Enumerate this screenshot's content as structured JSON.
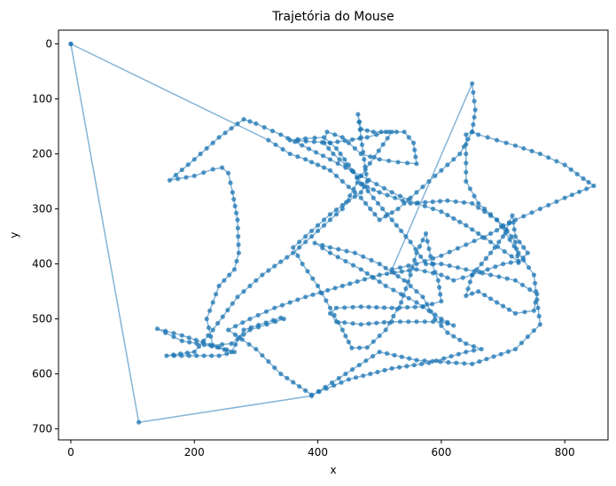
{
  "chart_data": {
    "type": "line",
    "title": "Trajetória do Mouse",
    "xlabel": "x",
    "ylabel": "y",
    "xlim": [
      -20,
      870
    ],
    "ylim": [
      -25,
      720
    ],
    "y_inverted": true,
    "x_ticks": [
      0,
      200,
      400,
      600,
      800
    ],
    "y_ticks": [
      0,
      100,
      200,
      300,
      400,
      500,
      600,
      700
    ],
    "grid": false,
    "color": "#1f77b4",
    "series": [
      {
        "points": [
          [
            0,
            0
          ],
          [
            110,
            688
          ],
          [
            390,
            640
          ],
          [
            500,
            560
          ],
          [
            560,
            575
          ],
          [
            650,
            582
          ],
          [
            720,
            555
          ],
          [
            760,
            510
          ],
          [
            750,
            420
          ],
          [
            725,
            380
          ],
          [
            690,
            320
          ],
          [
            650,
            290
          ],
          [
            610,
            285
          ],
          [
            550,
            290
          ],
          [
            500,
            270
          ],
          [
            470,
            255
          ],
          [
            450,
            220
          ],
          [
            430,
            190
          ],
          [
            410,
            170
          ],
          [
            380,
            172
          ],
          [
            355,
            175
          ],
          [
            420,
            180
          ],
          [
            480,
            170
          ],
          [
            510,
            160
          ],
          [
            520,
            160
          ],
          [
            470,
            240
          ],
          [
            440,
            300
          ],
          [
            400,
            340
          ],
          [
            360,
            380
          ],
          [
            310,
            420
          ],
          [
            270,
            460
          ],
          [
            230,
            520
          ],
          [
            200,
            560
          ],
          [
            155,
            567
          ],
          [
            240,
            567
          ],
          [
            265,
            560
          ],
          [
            240,
            552
          ],
          [
            180,
            540
          ],
          [
            140,
            518
          ],
          [
            180,
            530
          ],
          [
            260,
            560
          ],
          [
            280,
            520
          ],
          [
            340,
            498
          ],
          [
            345,
            500
          ],
          [
            290,
            520
          ],
          [
            260,
            545
          ],
          [
            230,
            548
          ],
          [
            220,
            500
          ],
          [
            240,
            440
          ],
          [
            265,
            410
          ],
          [
            272,
            380
          ],
          [
            270,
            320
          ],
          [
            262,
            270
          ],
          [
            255,
            235
          ],
          [
            245,
            225
          ],
          [
            230,
            228
          ],
          [
            200,
            240
          ],
          [
            160,
            248
          ],
          [
            200,
            210
          ],
          [
            240,
            170
          ],
          [
            280,
            137
          ],
          [
            300,
            145
          ],
          [
            340,
            165
          ],
          [
            420,
            210
          ],
          [
            470,
            240
          ],
          [
            520,
            270
          ],
          [
            560,
            290
          ],
          [
            600,
            305
          ],
          [
            640,
            330
          ],
          [
            680,
            360
          ],
          [
            725,
            395
          ],
          [
            700,
            400
          ],
          [
            650,
            420
          ],
          [
            620,
            430
          ],
          [
            600,
            420
          ],
          [
            560,
            410
          ],
          [
            500,
            420
          ],
          [
            440,
            440
          ],
          [
            380,
            460
          ],
          [
            330,
            480
          ],
          [
            290,
            500
          ],
          [
            255,
            520
          ],
          [
            300,
            555
          ],
          [
            340,
            600
          ],
          [
            390,
            638
          ],
          [
            450,
            610
          ],
          [
            520,
            590
          ],
          [
            580,
            580
          ],
          [
            640,
            560
          ],
          [
            665,
            555
          ],
          [
            640,
            545
          ],
          [
            610,
            525
          ],
          [
            590,
            500
          ],
          [
            570,
            460
          ],
          [
            540,
            430
          ],
          [
            500,
            400
          ],
          [
            460,
            380
          ],
          [
            420,
            370
          ],
          [
            395,
            362
          ],
          [
            420,
            380
          ],
          [
            470,
            410
          ],
          [
            510,
            440
          ],
          [
            560,
            470
          ],
          [
            600,
            500
          ],
          [
            620,
            512
          ],
          [
            600,
            505
          ],
          [
            560,
            505
          ],
          [
            520,
            505
          ],
          [
            470,
            510
          ],
          [
            430,
            505
          ],
          [
            420,
            490
          ],
          [
            430,
            480
          ],
          [
            470,
            478
          ],
          [
            520,
            480
          ],
          [
            570,
            478
          ],
          [
            600,
            468
          ],
          [
            595,
            430
          ],
          [
            585,
            400
          ],
          [
            575,
            345
          ],
          [
            560,
            380
          ],
          [
            550,
            420
          ],
          [
            535,
            470
          ],
          [
            510,
            520
          ],
          [
            480,
            552
          ],
          [
            455,
            553
          ],
          [
            440,
            520
          ],
          [
            420,
            480
          ],
          [
            400,
            440
          ],
          [
            375,
            400
          ],
          [
            360,
            370
          ],
          [
            390,
            340
          ],
          [
            420,
            310
          ],
          [
            450,
            285
          ],
          [
            470,
            270
          ],
          [
            480,
            250
          ],
          [
            475,
            210
          ],
          [
            470,
            170
          ],
          [
            465,
            128
          ],
          [
            470,
            155
          ],
          [
            490,
            160
          ],
          [
            540,
            160
          ],
          [
            555,
            180
          ],
          [
            560,
            218
          ],
          [
            530,
            215
          ],
          [
            500,
            210
          ],
          [
            470,
            200
          ],
          [
            440,
            170
          ],
          [
            415,
            160
          ],
          [
            410,
            180
          ],
          [
            425,
            200
          ],
          [
            455,
            230
          ],
          [
            490,
            280
          ],
          [
            520,
            320
          ],
          [
            550,
            360
          ],
          [
            575,
            400
          ],
          [
            600,
            400
          ],
          [
            640,
            410
          ],
          [
            680,
            420
          ],
          [
            720,
            430
          ],
          [
            755,
            455
          ],
          [
            750,
            485
          ],
          [
            720,
            490
          ],
          [
            690,
            470
          ],
          [
            660,
            450
          ],
          [
            640,
            458
          ],
          [
            650,
            420
          ],
          [
            680,
            380
          ],
          [
            700,
            350
          ],
          [
            715,
            312
          ],
          [
            720,
            350
          ],
          [
            740,
            380
          ],
          [
            725,
            398
          ],
          [
            720,
            360
          ],
          [
            700,
            330
          ],
          [
            680,
            310
          ],
          [
            660,
            290
          ],
          [
            640,
            250
          ],
          [
            640,
            200
          ],
          [
            640,
            165
          ],
          [
            650,
            160
          ],
          [
            660,
            165
          ],
          [
            690,
            175
          ],
          [
            720,
            185
          ],
          [
            760,
            200
          ],
          [
            800,
            220
          ],
          [
            830,
            245
          ],
          [
            847,
            258
          ],
          [
            800,
            280
          ],
          [
            760,
            300
          ],
          [
            720,
            320
          ],
          [
            680,
            345
          ],
          [
            640,
            365
          ],
          [
            600,
            385
          ],
          [
            560,
            400
          ],
          [
            520,
            410
          ],
          [
            650,
            72
          ],
          [
            655,
            120
          ],
          [
            650,
            160
          ],
          [
            630,
            200
          ],
          [
            600,
            230
          ],
          [
            560,
            270
          ],
          [
            530,
            300
          ],
          [
            500,
            320
          ],
          [
            470,
            280
          ],
          [
            440,
            250
          ],
          [
            420,
            230
          ],
          [
            400,
            220
          ],
          [
            380,
            210
          ],
          [
            355,
            200
          ],
          [
            320,
            175
          ],
          [
            0,
            0
          ]
        ]
      }
    ]
  }
}
